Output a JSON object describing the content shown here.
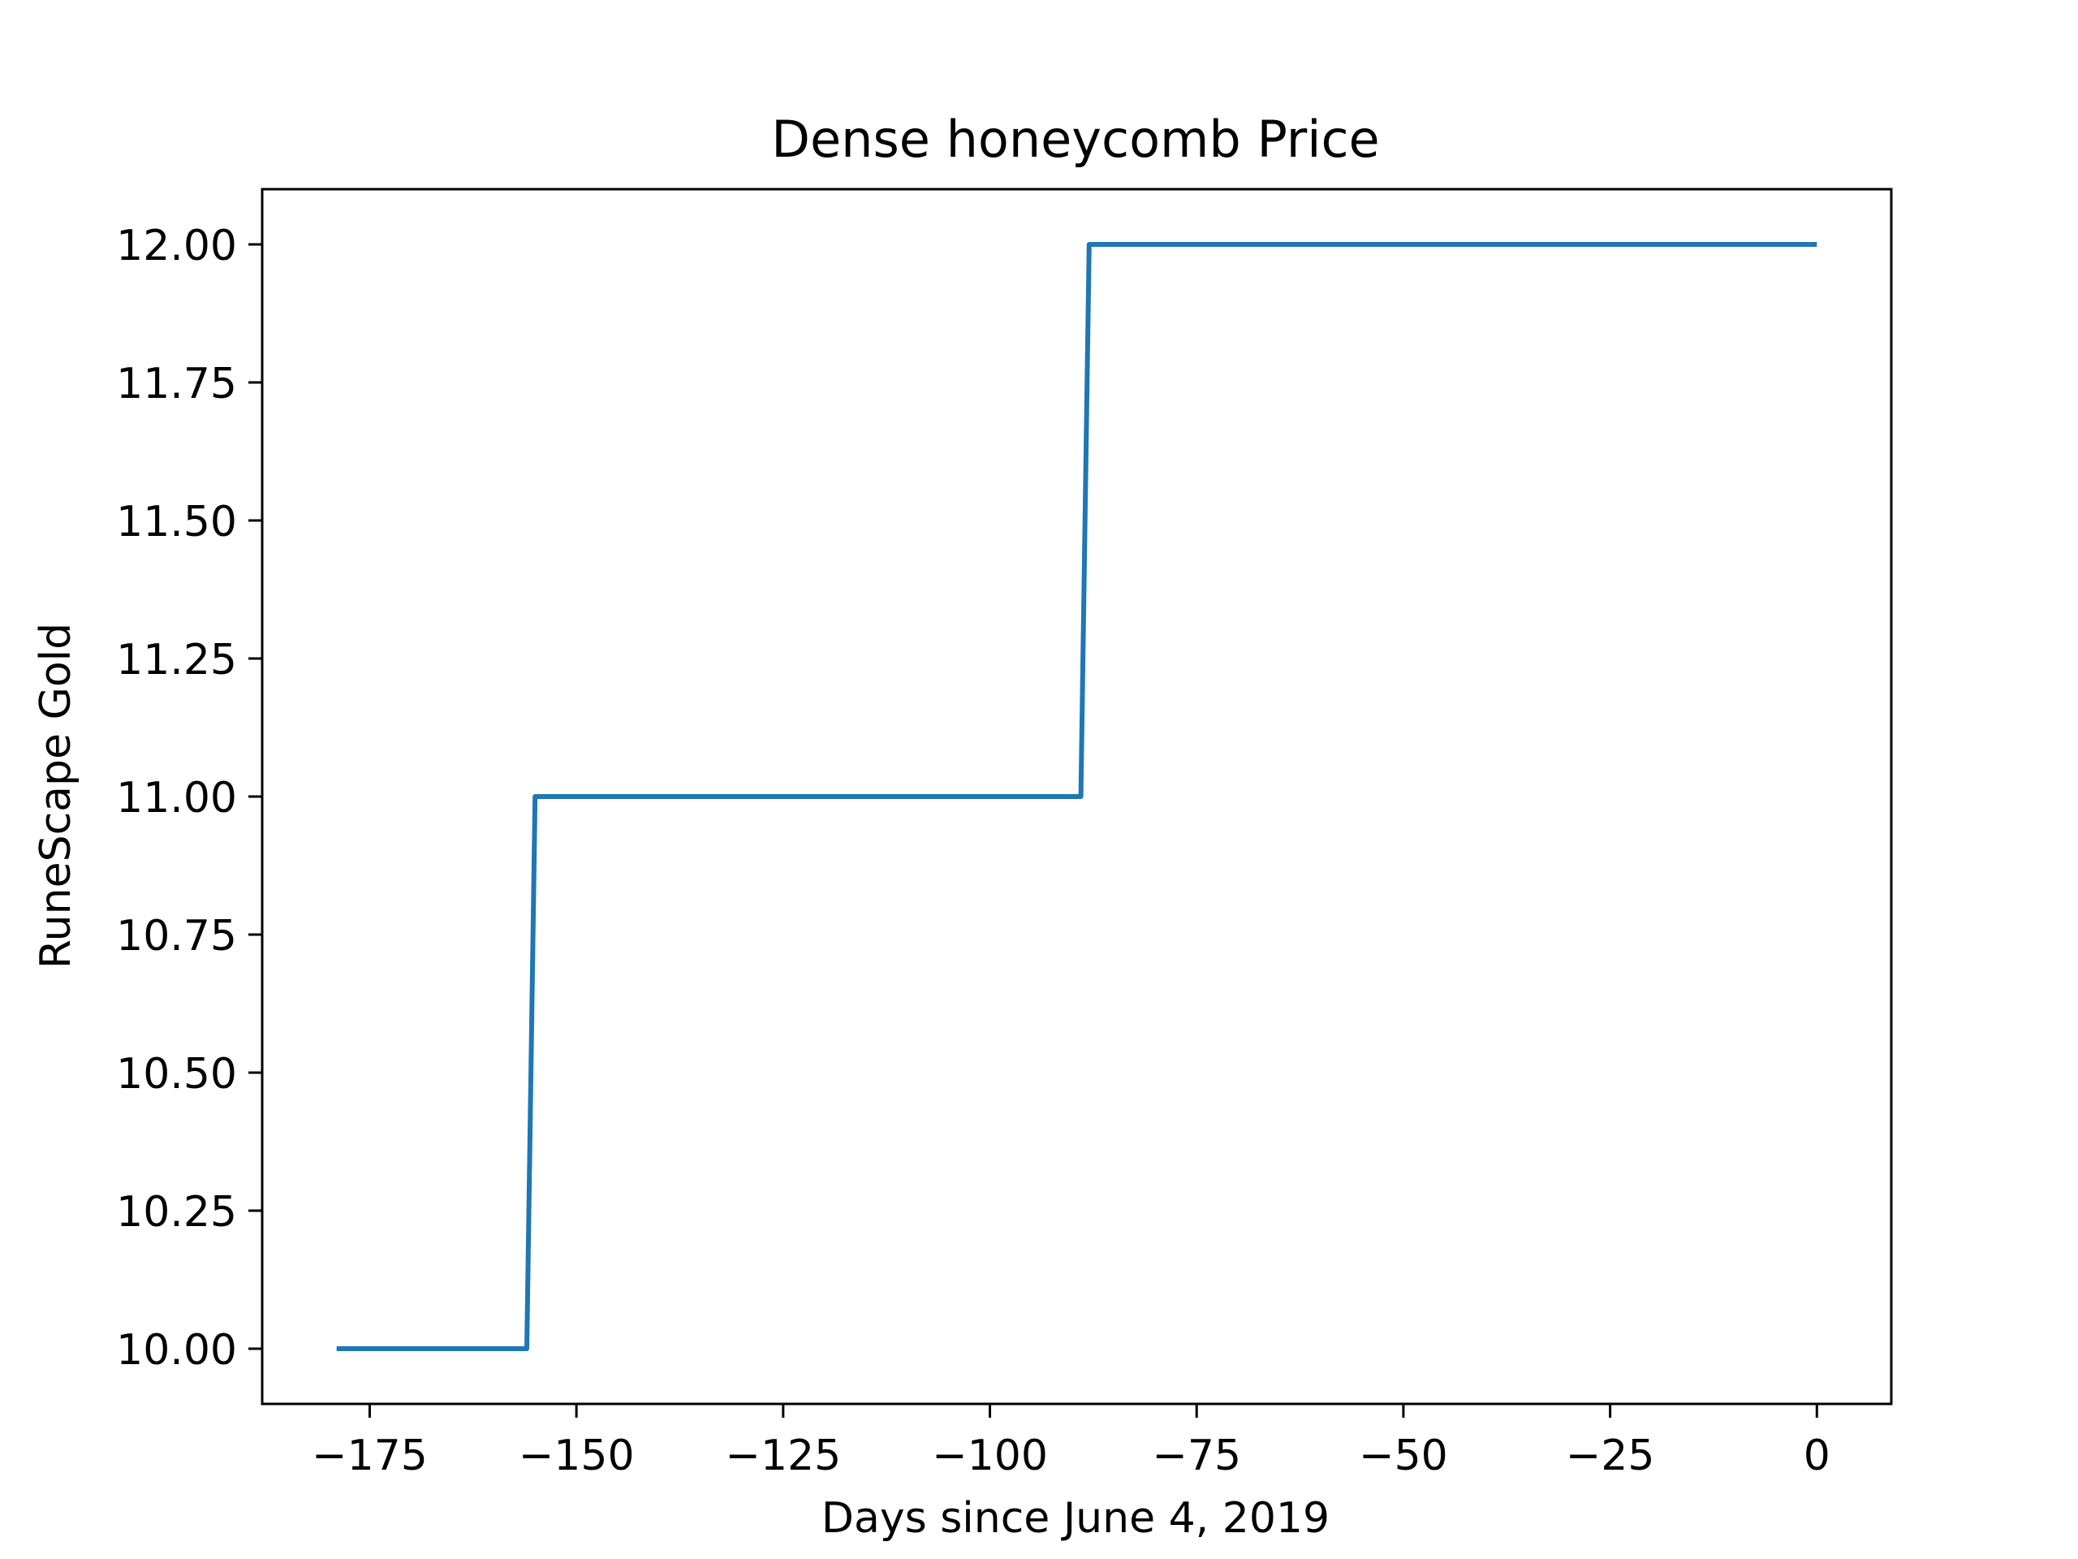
{
  "chart_data": {
    "type": "line",
    "title": "Dense honeycomb Price",
    "xlabel": "Days since June 4, 2019",
    "ylabel": "RuneScape Gold",
    "xlim": [
      -188,
      9
    ],
    "ylim": [
      9.9,
      12.1
    ],
    "x_ticks": [
      {
        "value": -175,
        "label": "−175"
      },
      {
        "value": -150,
        "label": "−150"
      },
      {
        "value": -125,
        "label": "−125"
      },
      {
        "value": -100,
        "label": "−100"
      },
      {
        "value": -75,
        "label": "−75"
      },
      {
        "value": -50,
        "label": "−50"
      },
      {
        "value": -25,
        "label": "−25"
      },
      {
        "value": 0,
        "label": "0"
      }
    ],
    "y_ticks": [
      {
        "value": 10.0,
        "label": "10.00"
      },
      {
        "value": 10.25,
        "label": "10.25"
      },
      {
        "value": 10.5,
        "label": "10.50"
      },
      {
        "value": 10.75,
        "label": "10.75"
      },
      {
        "value": 11.0,
        "label": "11.00"
      },
      {
        "value": 11.25,
        "label": "11.25"
      },
      {
        "value": 11.5,
        "label": "11.50"
      },
      {
        "value": 11.75,
        "label": "11.75"
      },
      {
        "value": 12.0,
        "label": "12.00"
      }
    ],
    "grid": false,
    "series": [
      {
        "color": "#1f77b4",
        "x": [
          -179,
          -156,
          -155,
          -89,
          -88,
          0
        ],
        "y": [
          10,
          10,
          11,
          11,
          12,
          12
        ]
      }
    ]
  }
}
